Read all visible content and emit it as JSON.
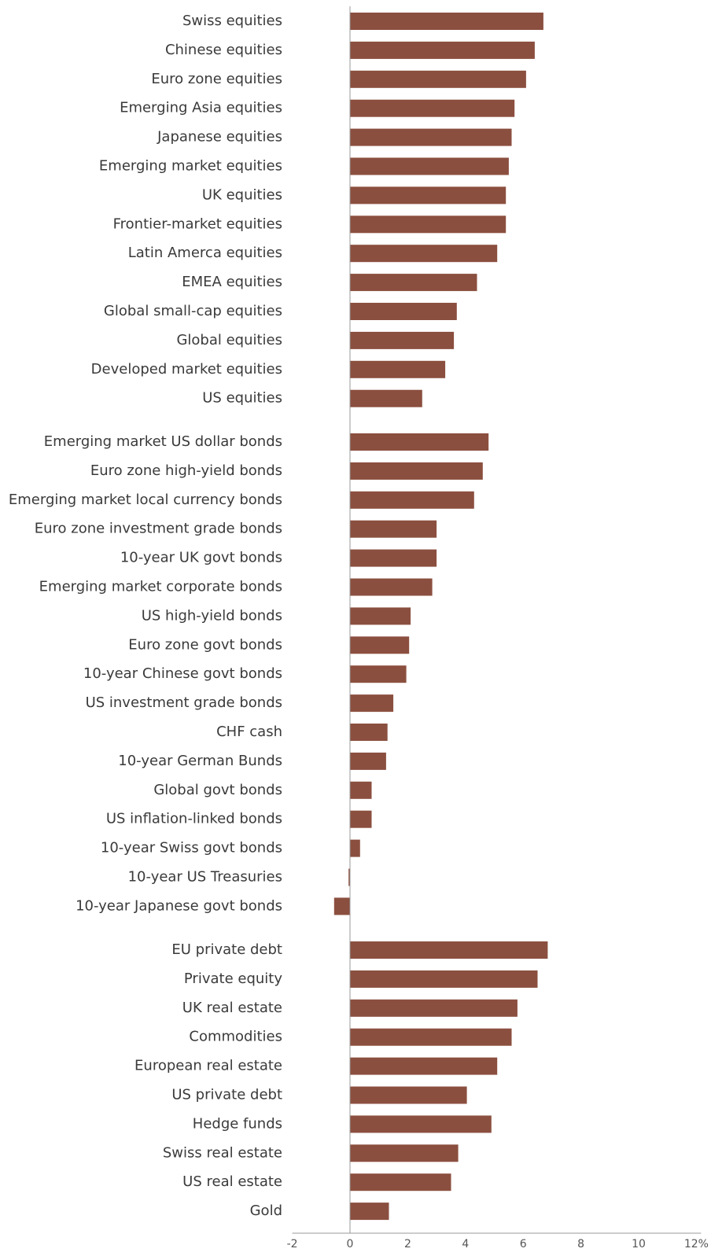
{
  "chart_data": {
    "type": "bar",
    "orientation": "horizontal",
    "unit_suffix": "%",
    "xlim": [
      -2,
      12
    ],
    "x_ticks": [
      "-2",
      "0",
      "2",
      "4",
      "6",
      "8",
      "10",
      "12%"
    ],
    "colors": {
      "bar": "#8B4F3F",
      "axis": "#999999",
      "text": "#3a3a3a"
    },
    "grid": false,
    "groups": [
      {
        "items": [
          {
            "label": "Swiss equities",
            "value": 6.7
          },
          {
            "label": "Chinese equities",
            "value": 6.4
          },
          {
            "label": "Euro zone equities",
            "value": 6.1
          },
          {
            "label": "Emerging Asia equities",
            "value": 5.7
          },
          {
            "label": "Japanese equities",
            "value": 5.6
          },
          {
            "label": "Emerging market equities",
            "value": 5.5
          },
          {
            "label": "UK equities",
            "value": 5.4
          },
          {
            "label": "Frontier-market equities",
            "value": 5.4
          },
          {
            "label": "Latin Amerca equities",
            "value": 5.1
          },
          {
            "label": "EMEA equities",
            "value": 4.4
          },
          {
            "label": "Global small-cap equities",
            "value": 3.7
          },
          {
            "label": "Global equities",
            "value": 3.6
          },
          {
            "label": "Developed market equities",
            "value": 3.3
          },
          {
            "label": "US equities",
            "value": 2.5
          }
        ]
      },
      {
        "items": [
          {
            "label": "Emerging market US dollar bonds",
            "value": 4.8
          },
          {
            "label": "Euro zone high-yield bonds",
            "value": 4.6
          },
          {
            "label": "Emerging market local currency bonds",
            "value": 4.3
          },
          {
            "label": "Euro zone investment grade bonds",
            "value": 3.0
          },
          {
            "label": "10-year UK govt bonds",
            "value": 3.0
          },
          {
            "label": "Emerging market corporate bonds",
            "value": 2.85
          },
          {
            "label": "US high-yield bonds",
            "value": 2.1
          },
          {
            "label": "Euro zone govt bonds",
            "value": 2.05
          },
          {
            "label": "10-year Chinese govt bonds",
            "value": 1.95
          },
          {
            "label": "US investment grade bonds",
            "value": 1.5
          },
          {
            "label": "CHF cash",
            "value": 1.3
          },
          {
            "label": "10-year German Bunds",
            "value": 1.25
          },
          {
            "label": "Global govt bonds",
            "value": 0.75
          },
          {
            "label": "US inflation-linked bonds",
            "value": 0.75
          },
          {
            "label": "10-year Swiss govt bonds",
            "value": 0.35
          },
          {
            "label": "10-year US Treasuries",
            "value": -0.05
          },
          {
            "label": "10-year Japanese govt bonds",
            "value": -0.55
          }
        ]
      },
      {
        "items": [
          {
            "label": "EU private debt",
            "value": 6.85
          },
          {
            "label": "Private equity",
            "value": 6.5
          },
          {
            "label": "UK real estate",
            "value": 5.8
          },
          {
            "label": "Commodities",
            "value": 5.6
          },
          {
            "label": "European real estate",
            "value": 5.1
          },
          {
            "label": "US private debt",
            "value": 4.05
          },
          {
            "label": "Hedge funds",
            "value": 4.9
          },
          {
            "label": "Swiss real estate",
            "value": 3.75
          },
          {
            "label": "US real estate",
            "value": 3.5
          },
          {
            "label": "Gold",
            "value": 1.35
          }
        ]
      }
    ]
  }
}
